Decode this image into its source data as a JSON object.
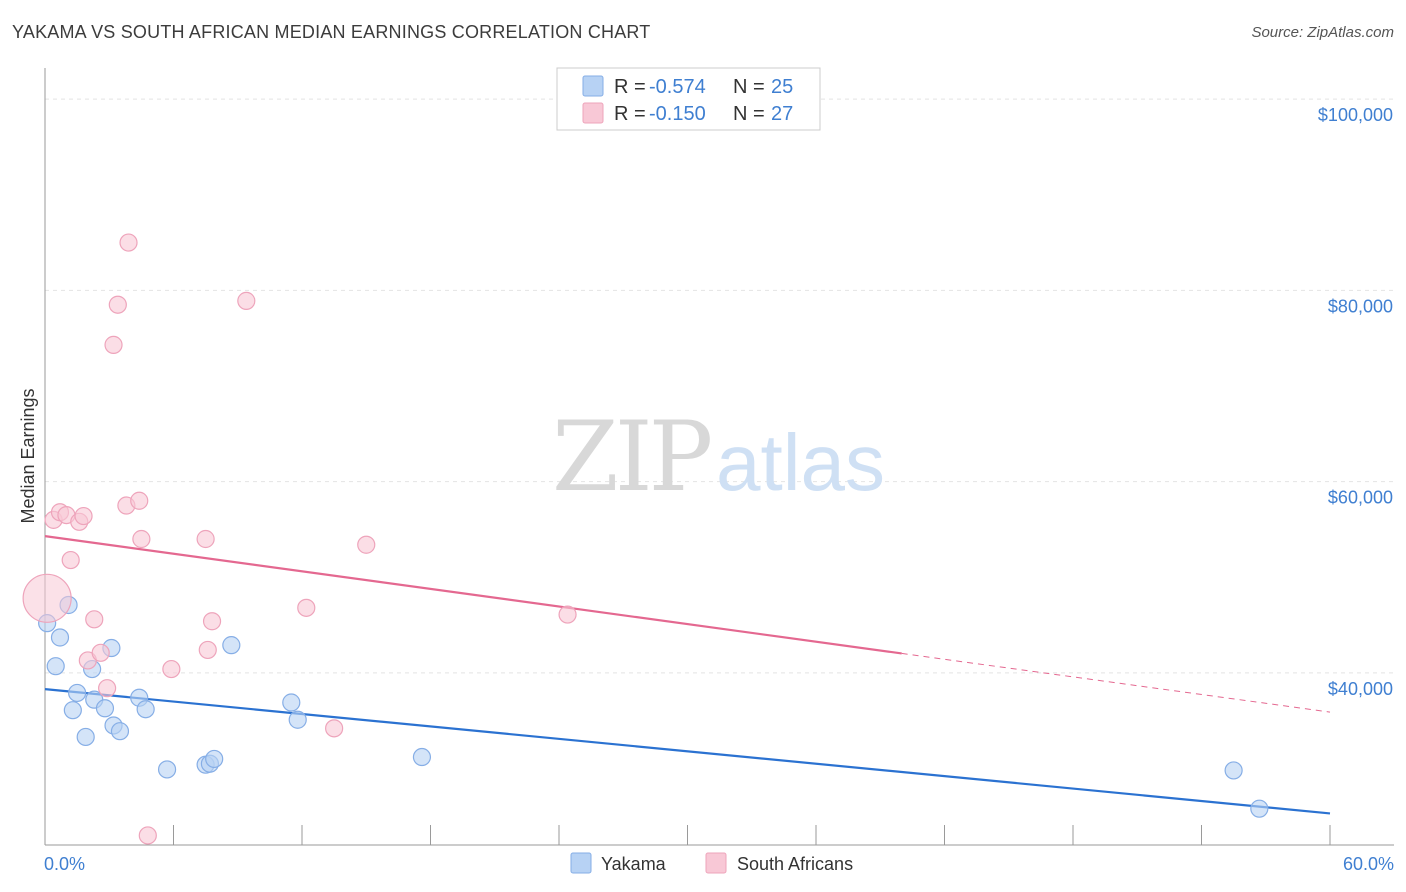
{
  "header": {
    "title": "YAKAMA VS SOUTH AFRICAN MEDIAN EARNINGS CORRELATION CHART",
    "source": "Source: ZipAtlas.com"
  },
  "watermark": {
    "zip": "ZIP",
    "atlas": "atlas"
  },
  "legend_box": {
    "rows": [
      {
        "r_label": "R =",
        "r_value": "-0.574",
        "n_label": "N =",
        "n_value": "25"
      },
      {
        "r_label": "R =",
        "r_value": "-0.150",
        "n_label": "N =",
        "n_value": "27"
      }
    ]
  },
  "colors": {
    "yakama_fill": "#b7d2f4",
    "yakama_stroke": "#86aee6",
    "yakama_line": "#2b72d1",
    "sa_fill": "#f8c8d6",
    "sa_stroke": "#eea4bb",
    "sa_line": "#e46890",
    "grid": "#e4e4e4",
    "axis_text": "#3f7fd1"
  },
  "chart_data": {
    "type": "scatter",
    "title": "YAKAMA VS SOUTH AFRICAN MEDIAN EARNINGS CORRELATION CHART",
    "xlabel": "",
    "ylabel": "Median Earnings",
    "xlim": [
      0,
      60
    ],
    "ylim": [
      22000,
      102000
    ],
    "x_tick_labels": [
      "0.0%",
      "60.0%"
    ],
    "y_ticks": [
      40000,
      60000,
      80000,
      100000
    ],
    "y_tick_labels": [
      "$40,000",
      "$60,000",
      "$80,000",
      "$100,000"
    ],
    "grid": true,
    "series": [
      {
        "name": "Yakama",
        "r": -0.574,
        "n": 25,
        "points": [
          [
            0.1,
            45200
          ],
          [
            0.5,
            40700
          ],
          [
            0.7,
            43700
          ],
          [
            1.1,
            47100
          ],
          [
            1.3,
            36100
          ],
          [
            1.5,
            37900
          ],
          [
            1.9,
            33300
          ],
          [
            2.2,
            40400
          ],
          [
            2.3,
            37200
          ],
          [
            2.8,
            36300
          ],
          [
            3.1,
            42600
          ],
          [
            3.2,
            34500
          ],
          [
            3.5,
            33900
          ],
          [
            4.4,
            37400
          ],
          [
            4.7,
            36200
          ],
          [
            5.7,
            29900
          ],
          [
            7.5,
            30400
          ],
          [
            7.7,
            30500
          ],
          [
            7.9,
            31000
          ],
          [
            8.7,
            42900
          ],
          [
            11.5,
            36900
          ],
          [
            11.8,
            35100
          ],
          [
            17.6,
            31200
          ],
          [
            55.5,
            29800
          ],
          [
            56.7,
            25800
          ]
        ],
        "trend": {
          "x0": 0,
          "y0": 38300,
          "x1": 60,
          "y1": 25300,
          "dashed_from_x": null
        }
      },
      {
        "name": "South Africans",
        "r": -0.15,
        "n": 27,
        "points": [
          [
            0.1,
            47800
          ],
          [
            0.4,
            56000
          ],
          [
            0.7,
            56800
          ],
          [
            1.0,
            56500
          ],
          [
            1.2,
            51800
          ],
          [
            1.6,
            55800
          ],
          [
            1.8,
            56400
          ],
          [
            2.0,
            41300
          ],
          [
            2.3,
            45600
          ],
          [
            2.6,
            42100
          ],
          [
            2.9,
            38400
          ],
          [
            3.2,
            74300
          ],
          [
            3.4,
            78500
          ],
          [
            3.8,
            57500
          ],
          [
            3.9,
            85000
          ],
          [
            4.4,
            58000
          ],
          [
            4.5,
            54000
          ],
          [
            5.9,
            40400
          ],
          [
            7.5,
            54000
          ],
          [
            7.6,
            42400
          ],
          [
            7.8,
            45400
          ],
          [
            9.4,
            78900
          ],
          [
            12.2,
            46800
          ],
          [
            13.5,
            34200
          ],
          [
            15.0,
            53400
          ],
          [
            24.4,
            46100
          ],
          [
            4.8,
            23000
          ]
        ],
        "trend": {
          "x0": 0,
          "y0": 54300,
          "x1": 60,
          "y1": 35900,
          "dashed_from_x": 40
        }
      }
    ]
  }
}
